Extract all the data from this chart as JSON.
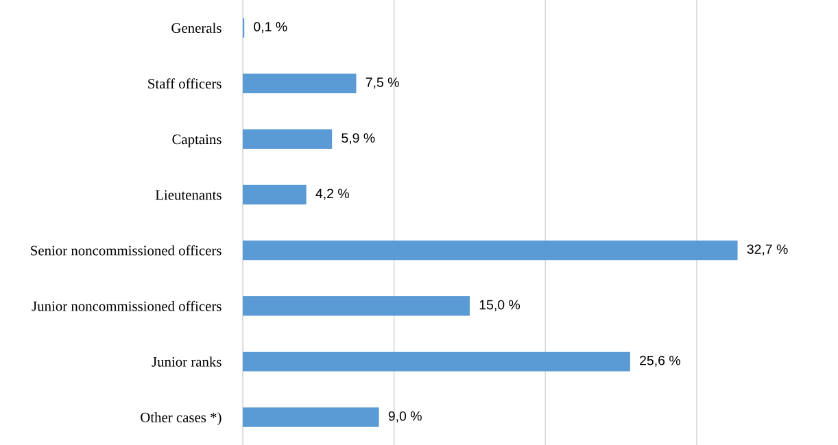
{
  "chart_data": {
    "type": "bar",
    "orientation": "horizontal",
    "categories": [
      "Generals",
      "Staff officers",
      "Captains",
      "Lieutenants",
      "Senior noncommissioned officers",
      "Junior noncommissioned officers",
      "Junior ranks",
      "Other cases *)"
    ],
    "values": [
      0.1,
      7.5,
      5.9,
      4.2,
      32.7,
      15.0,
      25.6,
      9.0
    ],
    "value_labels": [
      "0,1 %",
      "7,5 %",
      "5,9 %",
      "4,2 %",
      "32,7 %",
      "15,0 %",
      "25,6 %",
      "9,0 %"
    ],
    "color": "#5b9bd5",
    "xticks": [
      {
        "value": 0,
        "label": null
      },
      {
        "value": 10,
        "label": null
      },
      {
        "value": 20,
        "label": null
      },
      {
        "value": 30,
        "label": null
      }
    ],
    "tick_labels": "y",
    "grid": "x"
  }
}
